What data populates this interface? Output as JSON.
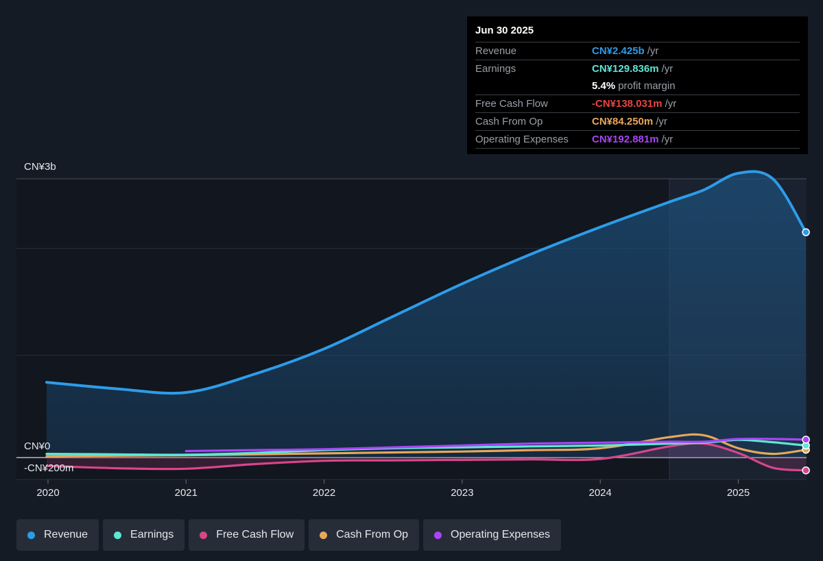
{
  "chart_data": {
    "type": "line",
    "x_ticks": [
      "2020",
      "2021",
      "2022",
      "2023",
      "2024",
      "2025"
    ],
    "y_axis_labels": {
      "top": "CN¥3b",
      "zero": "CN¥0",
      "bottom": "-CN¥200m"
    },
    "ylim": [
      -200,
      3000
    ],
    "y_unit": "CN¥ millions",
    "grid": true,
    "legend_position": "bottom",
    "forecast_region_start": 2024.5,
    "series": [
      {
        "name": "Revenue",
        "color": "#2d9ce8",
        "area": true,
        "x": [
          2019.99,
          2020.5,
          2021.0,
          2021.5,
          2022.0,
          2022.5,
          2023.0,
          2023.5,
          2024.0,
          2024.5,
          2024.75,
          2025.0,
          2025.25,
          2025.49
        ],
        "y": [
          810,
          740,
          700,
          900,
          1170,
          1520,
          1870,
          2190,
          2480,
          2750,
          2880,
          3060,
          3000,
          2425
        ]
      },
      {
        "name": "Earnings",
        "color": "#5fe6d4",
        "area": false,
        "x": [
          2019.99,
          2020.5,
          2021.0,
          2021.5,
          2022.0,
          2022.5,
          2023.0,
          2023.5,
          2024.0,
          2024.5,
          2024.75,
          2025.0,
          2025.25,
          2025.49
        ],
        "y": [
          40,
          35,
          30,
          50,
          80,
          100,
          110,
          120,
          130,
          150,
          160,
          190,
          165,
          129.836
        ]
      },
      {
        "name": "Free Cash Flow",
        "color": "#d9458a",
        "area": true,
        "x": [
          2019.99,
          2020.5,
          2021.0,
          2021.5,
          2022.0,
          2022.5,
          2023.0,
          2023.5,
          2024.0,
          2024.5,
          2024.75,
          2025.0,
          2025.25,
          2025.49
        ],
        "y": [
          -90,
          -115,
          -120,
          -70,
          -35,
          -30,
          -25,
          -20,
          -15,
          120,
          150,
          50,
          -110,
          -138.031
        ]
      },
      {
        "name": "Cash From Op",
        "color": "#e8a75a",
        "area": false,
        "x": [
          2019.99,
          2020.5,
          2021.0,
          2021.5,
          2022.0,
          2022.5,
          2023.0,
          2023.5,
          2024.0,
          2024.5,
          2024.75,
          2025.0,
          2025.25,
          2025.49
        ],
        "y": [
          15,
          20,
          25,
          35,
          45,
          55,
          65,
          80,
          100,
          220,
          240,
          100,
          40,
          84.25
        ]
      },
      {
        "name": "Operating Expenses",
        "color": "#a945f5",
        "area": false,
        "x": [
          2021.0,
          2021.5,
          2022.0,
          2022.5,
          2023.0,
          2023.5,
          2024.0,
          2024.5,
          2024.75,
          2025.0,
          2025.25,
          2025.49
        ],
        "y": [
          70,
          80,
          90,
          110,
          130,
          150,
          160,
          170,
          170,
          200,
          200,
          192.881
        ]
      }
    ]
  },
  "tooltip": {
    "date": "Jun 30 2025",
    "revenue": {
      "label": "Revenue",
      "value": "CN¥2.425b",
      "unit": "/yr"
    },
    "earnings": {
      "label": "Earnings",
      "value": "CN¥129.836m",
      "unit": "/yr"
    },
    "margin": {
      "value": "5.4%",
      "unit": "profit margin"
    },
    "fcf": {
      "label": "Free Cash Flow",
      "value": "-CN¥138.031m",
      "unit": "/yr"
    },
    "cfo": {
      "label": "Cash From Op",
      "value": "CN¥84.250m",
      "unit": "/yr"
    },
    "opex": {
      "label": "Operating Expenses",
      "value": "CN¥192.881m",
      "unit": "/yr"
    }
  },
  "legend": {
    "revenue": "Revenue",
    "earnings": "Earnings",
    "fcf": "Free Cash Flow",
    "cfo": "Cash From Op",
    "opex": "Operating Expenses"
  },
  "colors": {
    "revenue": "#2d9ce8",
    "earnings": "#5fe6d4",
    "fcf": "#d9458a",
    "cfo": "#e8a75a",
    "opex": "#a945f5",
    "loss": "#e84545"
  }
}
